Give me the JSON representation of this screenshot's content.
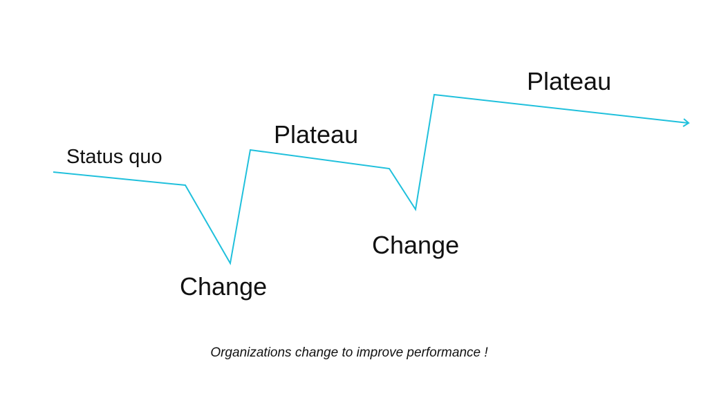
{
  "line_color": "#1fc0dc",
  "labels": {
    "status_quo": "Status quo",
    "change_1": "Change",
    "plateau_1": "Plateau",
    "change_2": "Change",
    "plateau_2": "Plateau"
  },
  "caption": "Organizations change to improve performance !"
}
